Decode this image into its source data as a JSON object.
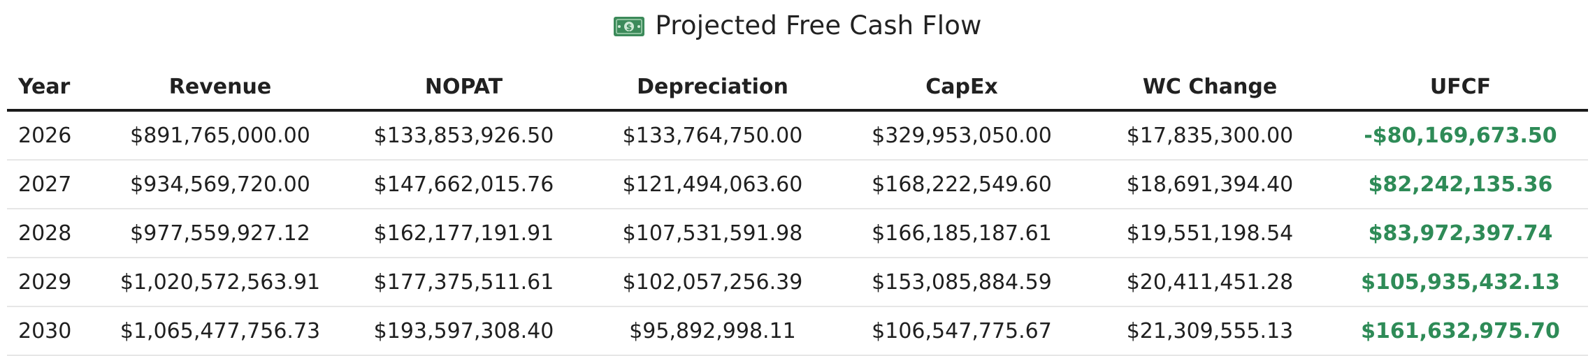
{
  "header": {
    "icon": "money-bill-icon",
    "title": "Projected Free Cash Flow"
  },
  "colors": {
    "accent_green": "#2e8b57",
    "text": "#212121",
    "row_divider": "#e6e6e6"
  },
  "table": {
    "columns": [
      "Year",
      "Revenue",
      "NOPAT",
      "Depreciation",
      "CapEx",
      "WC Change",
      "UFCF"
    ],
    "rows": [
      [
        "2026",
        "$891,765,000.00",
        "$133,853,926.50",
        "$133,764,750.00",
        "$329,953,050.00",
        "$17,835,300.00",
        "-$80,169,673.50"
      ],
      [
        "2027",
        "$934,569,720.00",
        "$147,662,015.76",
        "$121,494,063.60",
        "$168,222,549.60",
        "$18,691,394.40",
        "$82,242,135.36"
      ],
      [
        "2028",
        "$977,559,927.12",
        "$162,177,191.91",
        "$107,531,591.98",
        "$166,185,187.61",
        "$19,551,198.54",
        "$83,972,397.74"
      ],
      [
        "2029",
        "$1,020,572,563.91",
        "$177,375,511.61",
        "$102,057,256.39",
        "$153,085,884.59",
        "$20,411,451.28",
        "$105,935,432.13"
      ],
      [
        "2030",
        "$1,065,477,756.73",
        "$193,597,308.40",
        "$95,892,998.11",
        "$106,547,775.67",
        "$21,309,555.13",
        "$161,632,975.70"
      ]
    ]
  }
}
